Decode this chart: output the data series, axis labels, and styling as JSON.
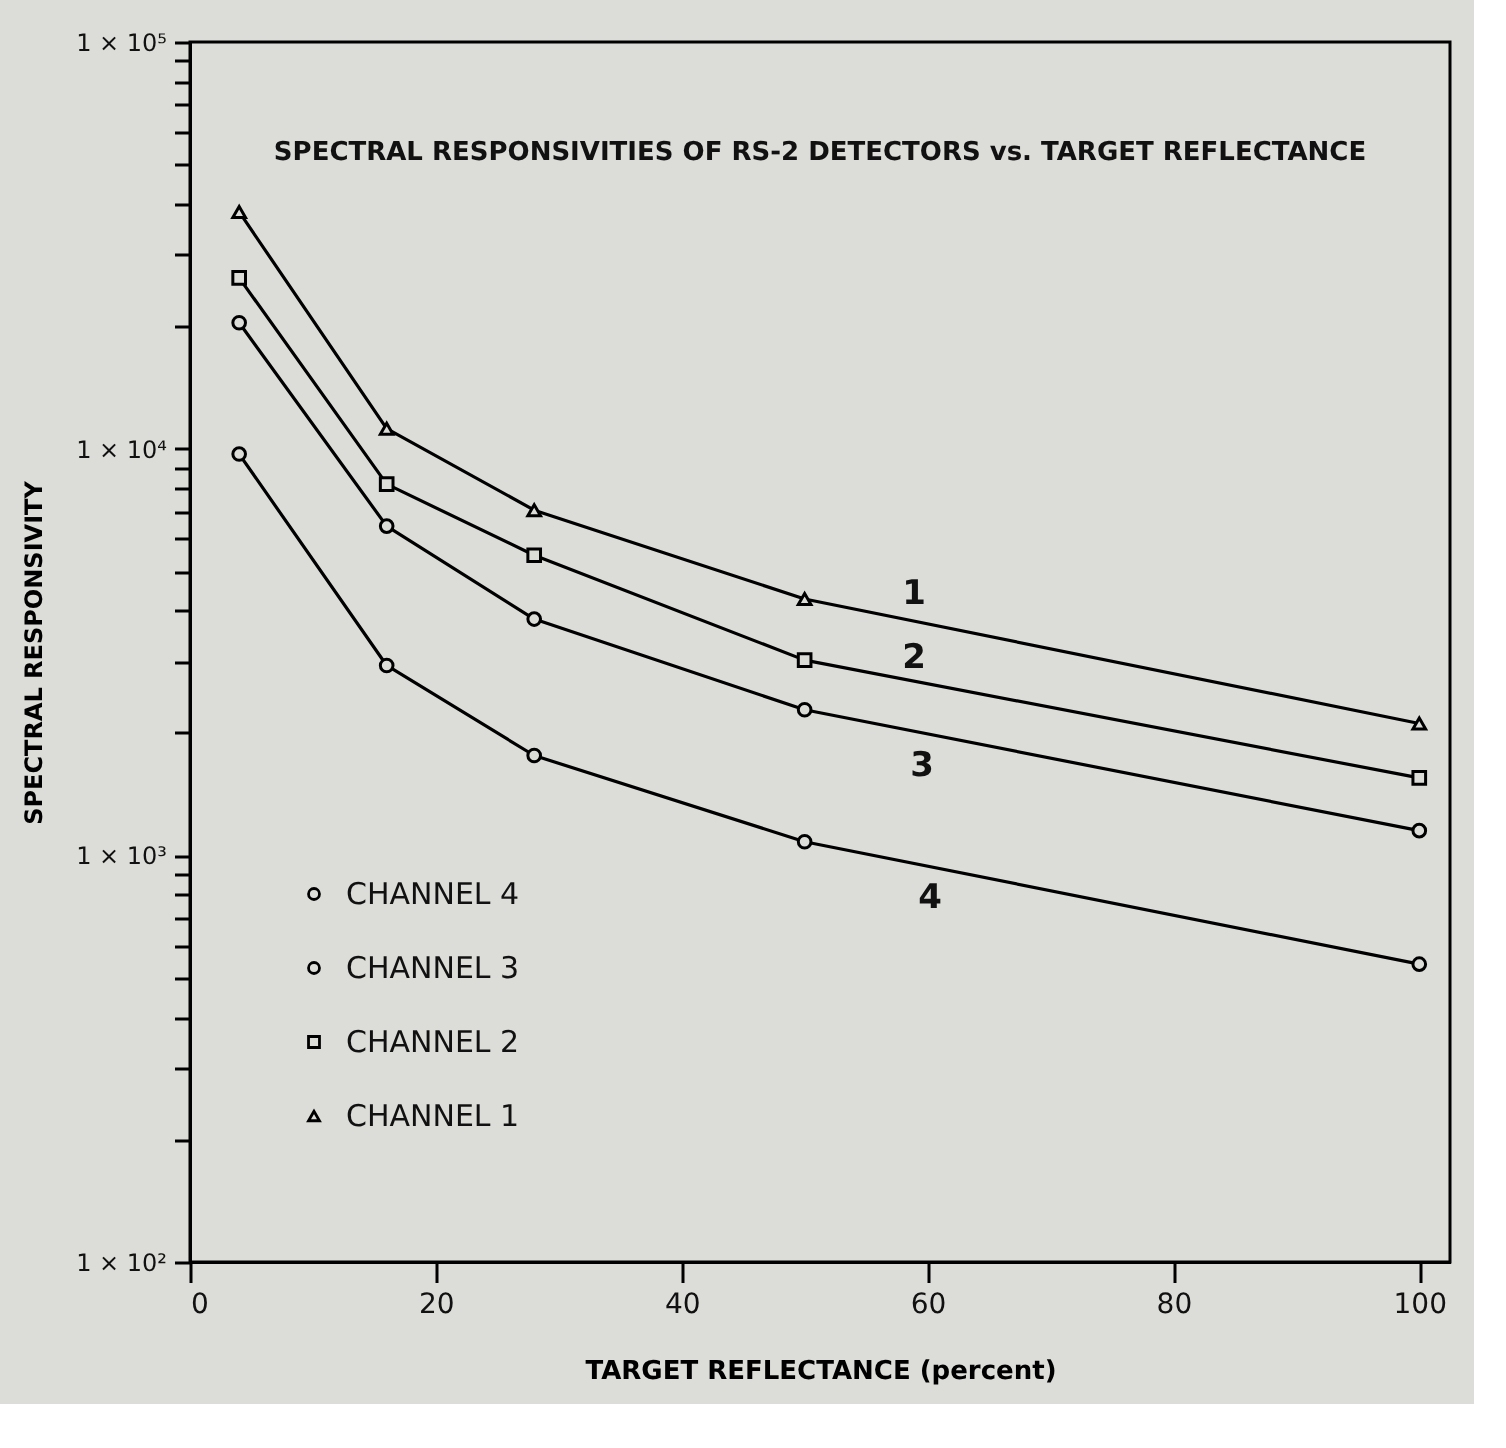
{
  "chart_data": {
    "type": "line",
    "title": "SPECTRAL RESPONSIVITIES OF RS-2 DETECTORS vs. TARGET REFLECTANCE",
    "xlabel": "TARGET   REFLECTANCE  (percent)",
    "ylabel": "SPECTRAL  RESPONSIVITY",
    "x": [
      4,
      16,
      28,
      50,
      100
    ],
    "series": [
      {
        "name": "CHANNEL  4",
        "color": "#000000",
        "marker": "circle",
        "values": [
          9700,
          2930,
          1760,
          1080,
          540
        ]
      },
      {
        "name": "CHANNEL  3",
        "color": "#000000",
        "marker": "circle",
        "values": [
          20400,
          6450,
          3810,
          2280,
          1150
        ]
      },
      {
        "name": "CHANNEL  2",
        "color": "#000000",
        "marker": "square",
        "values": [
          26300,
          8180,
          5470,
          3020,
          1550
        ]
      },
      {
        "name": "CHANNEL  1",
        "color": "#000000",
        "marker": "triangle",
        "values": [
          38200,
          11200,
          7060,
          4270,
          2110
        ]
      }
    ],
    "annotations": [
      "1",
      "2",
      "3",
      "4"
    ],
    "log": "y",
    "xlim": [
      0,
      102.5
    ],
    "xticks": [
      0,
      20,
      40,
      60,
      80,
      100
    ],
    "ylim": [
      100,
      100000
    ],
    "yticks": [
      {
        "value": 100,
        "label": "1 × 10²"
      },
      {
        "value": 200,
        "label": null
      },
      {
        "value": 300,
        "label": null
      },
      {
        "value": 400,
        "label": null
      },
      {
        "value": 500,
        "label": null
      },
      {
        "value": 600,
        "label": null
      },
      {
        "value": 700,
        "label": null
      },
      {
        "value": 800,
        "label": null
      },
      {
        "value": 900,
        "label": null
      },
      {
        "value": 1000,
        "label": "1 × 10³"
      },
      {
        "value": 2000,
        "label": null
      },
      {
        "value": 3000,
        "label": null
      },
      {
        "value": 4000,
        "label": null
      },
      {
        "value": 5000,
        "label": null
      },
      {
        "value": 6000,
        "label": null
      },
      {
        "value": 7000,
        "label": null
      },
      {
        "value": 8000,
        "label": null
      },
      {
        "value": 9000,
        "label": null
      },
      {
        "value": 10000,
        "label": "1 × 10⁴"
      },
      {
        "value": 20000,
        "label": null
      },
      {
        "value": 30000,
        "label": null
      },
      {
        "value": 40000,
        "label": null
      },
      {
        "value": 50000,
        "label": null
      },
      {
        "value": 60000,
        "label": null
      },
      {
        "value": 70000,
        "label": null
      },
      {
        "value": 80000,
        "label": null
      },
      {
        "value": 90000,
        "label": null
      },
      {
        "value": 100000,
        "label": "1 × 10⁵"
      }
    ],
    "grid": false,
    "legend": "bottom left",
    "line_style": "solid"
  }
}
